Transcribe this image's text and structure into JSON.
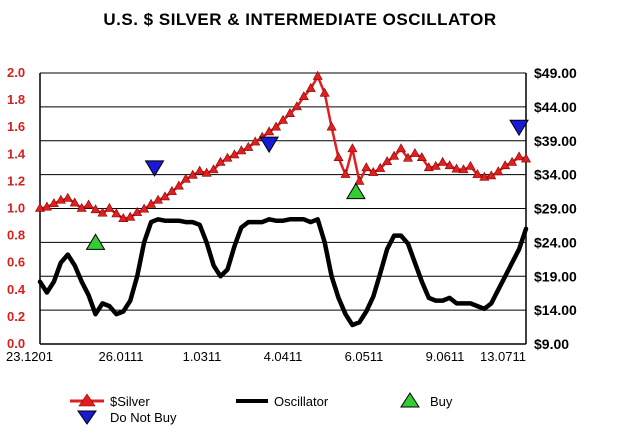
{
  "chart_data": {
    "type": "line",
    "title": "U.S. $ SILVER & INTERMEDIATE OSCILLATOR",
    "x_tick_labels": [
      "23.1201",
      "26.0111",
      "1.0311",
      "4.0411",
      "6.0511",
      "9.0611",
      "13.0711"
    ],
    "y_left": {
      "ticks": [
        "0.0",
        "0.2",
        "0.4",
        "0.6",
        "0.8",
        "1.0",
        "1.2",
        "1.4",
        "1.6",
        "1.8",
        "2.0"
      ],
      "ylim": [
        0,
        2.0
      ],
      "color": "#d62020"
    },
    "y_right": {
      "ticks": [
        "$9.00",
        "$14.00",
        "$19.00",
        "$24.00",
        "$29.00",
        "$34.00",
        "$39.00",
        "$44.00",
        "$49.00"
      ],
      "ylim": [
        9,
        49
      ]
    },
    "grid": "horizontal at right-axis ticks",
    "series": [
      {
        "name": "$Silver",
        "axis": "right",
        "color": "#e02020",
        "marker": "triangle",
        "x": [
          0,
          2,
          4,
          6,
          8,
          10,
          12,
          14,
          16,
          18,
          20,
          22,
          24,
          26,
          28,
          30,
          32,
          34,
          36,
          38,
          40,
          42,
          44,
          46,
          48,
          50,
          52,
          54,
          56,
          58,
          60,
          62,
          64,
          66,
          68,
          70,
          72,
          74,
          76,
          78,
          80,
          82,
          84,
          86,
          88,
          90,
          92,
          94,
          96,
          98,
          100,
          102,
          104,
          106,
          108,
          110,
          112,
          114,
          116,
          118,
          120,
          122,
          124,
          126,
          128,
          130,
          132,
          134,
          136,
          138,
          140
        ],
        "values": [
          29.0,
          29.2,
          29.7,
          30.2,
          30.5,
          29.8,
          29.0,
          29.5,
          28.8,
          28.3,
          29.0,
          28.2,
          27.5,
          27.7,
          28.4,
          28.9,
          29.6,
          30.2,
          30.7,
          31.5,
          32.3,
          33.3,
          33.9,
          34.5,
          34.2,
          34.7,
          35.8,
          36.4,
          36.9,
          37.5,
          38.0,
          38.8,
          39.5,
          40.3,
          41.0,
          42.0,
          43.0,
          44.0,
          45.5,
          46.7,
          48.5,
          46.0,
          41.0,
          36.5,
          34.0,
          37.8,
          33.0,
          35.0,
          34.3,
          34.9,
          35.9,
          36.7,
          37.8,
          36.4,
          37.1,
          36.5,
          35.0,
          35.2,
          35.8,
          35.3,
          34.8,
          34.7,
          35.2,
          34.0,
          33.6,
          33.8,
          34.4,
          35.3,
          35.8,
          36.6,
          36.3
        ]
      },
      {
        "name": "Oscillator",
        "axis": "left",
        "color": "#000000",
        "x": [
          0,
          2,
          4,
          6,
          8,
          10,
          12,
          14,
          16,
          18,
          20,
          22,
          24,
          26,
          28,
          30,
          32,
          34,
          36,
          38,
          40,
          42,
          44,
          46,
          48,
          50,
          52,
          54,
          56,
          58,
          60,
          62,
          64,
          66,
          68,
          70,
          72,
          74,
          76,
          78,
          80,
          82,
          84,
          86,
          88,
          90,
          92,
          94,
          96,
          98,
          100,
          102,
          104,
          106,
          108,
          110,
          112,
          114,
          116,
          118,
          120,
          122,
          124,
          126,
          128,
          130,
          132,
          134,
          136,
          138,
          140
        ],
        "values": [
          0.46,
          0.38,
          0.46,
          0.6,
          0.66,
          0.58,
          0.46,
          0.36,
          0.22,
          0.3,
          0.28,
          0.22,
          0.24,
          0.32,
          0.5,
          0.75,
          0.9,
          0.92,
          0.91,
          0.91,
          0.91,
          0.9,
          0.9,
          0.88,
          0.75,
          0.58,
          0.5,
          0.55,
          0.72,
          0.86,
          0.9,
          0.9,
          0.9,
          0.92,
          0.91,
          0.91,
          0.92,
          0.92,
          0.92,
          0.9,
          0.92,
          0.75,
          0.5,
          0.34,
          0.22,
          0.14,
          0.16,
          0.24,
          0.35,
          0.52,
          0.7,
          0.8,
          0.8,
          0.74,
          0.6,
          0.46,
          0.34,
          0.32,
          0.32,
          0.34,
          0.3,
          0.3,
          0.3,
          0.28,
          0.26,
          0.3,
          0.4,
          0.5,
          0.6,
          0.7,
          0.85
        ]
      }
    ],
    "signals": [
      {
        "name": "Buy",
        "color": "#33cc33",
        "direction": "up",
        "x": 16,
        "value": 24.0
      },
      {
        "name": "Buy",
        "color": "#33cc33",
        "direction": "up",
        "x": 91,
        "value": 31.5
      },
      {
        "name": "Do Not Buy",
        "color": "#1a1ad6",
        "direction": "down",
        "x": 33,
        "value": 35.0
      },
      {
        "name": "Do Not Buy",
        "color": "#1a1ad6",
        "direction": "down",
        "x": 66,
        "value": 38.5
      },
      {
        "name": "Do Not Buy",
        "color": "#1a1ad6",
        "direction": "down",
        "x": 138,
        "value": 41.0
      }
    ],
    "x_range": [
      0,
      140
    ],
    "legend": {
      "placement": "bottom",
      "items": [
        {
          "label": "$Silver",
          "color": "#e02020",
          "marker": "triangle-up-line"
        },
        {
          "label": "Oscillator",
          "color": "#000000",
          "marker": "line"
        },
        {
          "label": "Buy",
          "color": "#33cc33",
          "marker": "triangle-up"
        },
        {
          "label": "Do Not Buy",
          "color": "#1a1ad6",
          "marker": "triangle-down"
        }
      ]
    }
  }
}
